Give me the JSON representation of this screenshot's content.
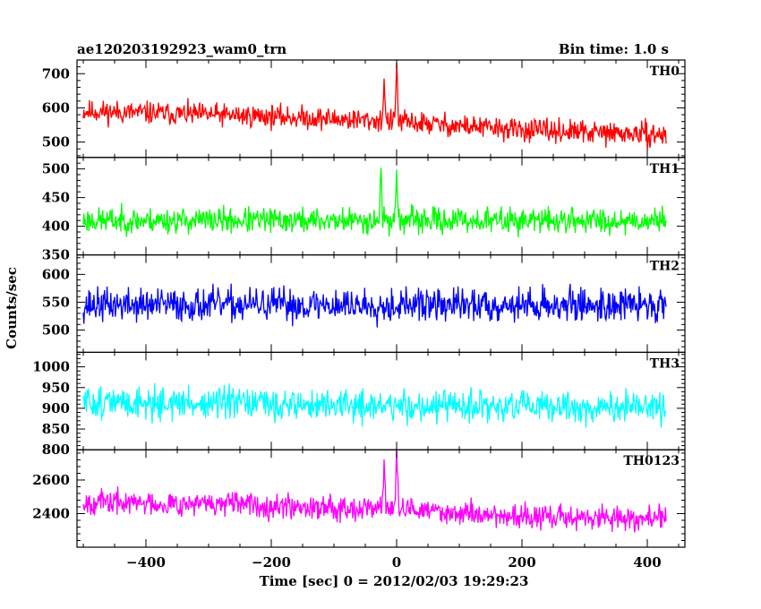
{
  "header": {
    "left_title": "ae120203192923_wam0_trn",
    "right_title": "Bin time: 1.0 s"
  },
  "chart_data": {
    "type": "line",
    "title": "ae120203192923_wam0_trn",
    "subtitle": "Bin time: 1.0 s",
    "xlabel": "Time [sec] 0 = 2012/02/03 19:29:23",
    "ylabel": "Counts/sec",
    "xlim": [
      -510,
      460
    ],
    "data_x_range": [
      -500,
      430
    ],
    "x_ticks": [
      -400,
      -200,
      0,
      200,
      400
    ],
    "x_tick_labels": [
      "−400",
      "−200",
      "0",
      "200",
      "400"
    ],
    "grid": false,
    "legend": "none",
    "series": [
      {
        "name": "TH0",
        "color": "#ff0000",
        "ylim": [
          455,
          740
        ],
        "y_ticks": [
          500,
          600,
          700
        ],
        "trend": [
          [
            -500,
            590
          ],
          [
            -200,
            575
          ],
          [
            0,
            560
          ],
          [
            200,
            535
          ],
          [
            430,
            520
          ]
        ],
        "noise": 30,
        "peaks": [
          [
            -20,
            690
          ],
          [
            0,
            735
          ]
        ],
        "seed": 11
      },
      {
        "name": "TH1",
        "color": "#00ff00",
        "ylim": [
          350,
          520
        ],
        "y_ticks": [
          350,
          400,
          450,
          500
        ],
        "trend": [
          [
            -500,
            410
          ],
          [
            430,
            410
          ]
        ],
        "noise": 20,
        "peaks": [
          [
            -25,
            505
          ],
          [
            0,
            505
          ]
        ],
        "seed": 23
      },
      {
        "name": "TH2",
        "color": "#0000ff",
        "ylim": [
          460,
          635
        ],
        "y_ticks": [
          500,
          550,
          600
        ],
        "trend": [
          [
            -500,
            545
          ],
          [
            430,
            545
          ]
        ],
        "noise": 27,
        "peaks": [],
        "seed": 37
      },
      {
        "name": "TH3",
        "color": "#00ffff",
        "ylim": [
          800,
          1035
        ],
        "y_ticks": [
          800,
          850,
          900,
          950,
          1000
        ],
        "trend": [
          [
            -500,
            915
          ],
          [
            0,
            905
          ],
          [
            430,
            900
          ]
        ],
        "noise": 35,
        "peaks": [],
        "seed": 51
      },
      {
        "name": "TH0123",
        "color": "#ff00ff",
        "ylim": [
          2200,
          2780
        ],
        "y_ticks": [
          2400,
          2600
        ],
        "trend": [
          [
            -500,
            2470
          ],
          [
            -200,
            2450
          ],
          [
            0,
            2430
          ],
          [
            200,
            2380
          ],
          [
            430,
            2370
          ]
        ],
        "noise": 65,
        "peaks": [
          [
            -20,
            2740
          ],
          [
            0,
            2760
          ]
        ],
        "seed": 67
      }
    ]
  }
}
